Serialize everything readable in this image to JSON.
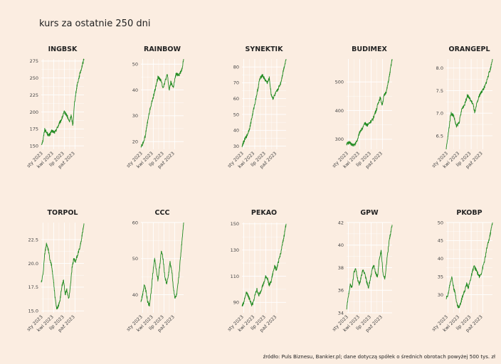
{
  "title": "kurs za ostatnie 250 dni",
  "source": "źródło: Puls Biznesu, Bankier.pl; dane dotyczą spółek o średnich obrotach powyżej 500 tys. zł",
  "colors": {
    "background": "#fbede1",
    "line": "#228b22",
    "grid": "#ffffff"
  },
  "chart_data": [
    {
      "type": "line",
      "title": "INGBSK",
      "x_ticks": [
        "sty 2023",
        "kwi 2023",
        "lip 2023",
        "paź 2023"
      ],
      "y_ticks": [
        150,
        175,
        200,
        225,
        250,
        275
      ],
      "y_tick_labels": [
        "150",
        "175",
        "200",
        "225",
        "250",
        "275"
      ],
      "ylim": [
        145,
        278
      ],
      "anchors": [
        [
          0,
          152
        ],
        [
          4,
          158
        ],
        [
          8,
          175
        ],
        [
          12,
          170
        ],
        [
          18,
          165
        ],
        [
          25,
          172
        ],
        [
          32,
          170
        ],
        [
          40,
          180
        ],
        [
          48,
          190
        ],
        [
          54,
          200
        ],
        [
          60,
          195
        ],
        [
          66,
          185
        ],
        [
          70,
          195
        ],
        [
          74,
          180
        ],
        [
          78,
          215
        ],
        [
          84,
          240
        ],
        [
          90,
          255
        ],
        [
          100,
          278
        ]
      ]
    },
    {
      "type": "line",
      "title": "RAINBOW",
      "x_ticks": [
        "sty 2023",
        "kwi 2023",
        "lip 2023",
        "paź 2023"
      ],
      "y_ticks": [
        20,
        30,
        40,
        50
      ],
      "y_tick_labels": [
        "20",
        "30",
        "40",
        "50"
      ],
      "ylim": [
        17,
        52
      ],
      "anchors": [
        [
          0,
          18
        ],
        [
          4,
          19
        ],
        [
          10,
          22
        ],
        [
          16,
          28
        ],
        [
          22,
          33
        ],
        [
          30,
          38
        ],
        [
          36,
          42
        ],
        [
          40,
          45
        ],
        [
          46,
          44
        ],
        [
          52,
          41
        ],
        [
          58,
          44
        ],
        [
          62,
          46
        ],
        [
          66,
          40
        ],
        [
          70,
          43
        ],
        [
          76,
          41
        ],
        [
          82,
          46
        ],
        [
          90,
          46
        ],
        [
          96,
          48
        ],
        [
          100,
          52
        ]
      ]
    },
    {
      "type": "line",
      "title": "SYNEKTIK",
      "x_ticks": [
        "sty 2023",
        "kwi 2023",
        "lip 2023",
        "paź 2023"
      ],
      "y_ticks": [
        30,
        40,
        50,
        60,
        70,
        80
      ],
      "y_tick_labels": [
        "30",
        "40",
        "50",
        "60",
        "70",
        "80"
      ],
      "ylim": [
        28,
        85
      ],
      "anchors": [
        [
          0,
          30
        ],
        [
          6,
          34
        ],
        [
          12,
          37
        ],
        [
          18,
          42
        ],
        [
          24,
          50
        ],
        [
          30,
          58
        ],
        [
          36,
          66
        ],
        [
          40,
          72
        ],
        [
          46,
          75
        ],
        [
          52,
          72
        ],
        [
          58,
          70
        ],
        [
          62,
          73
        ],
        [
          66,
          63
        ],
        [
          70,
          60
        ],
        [
          74,
          62
        ],
        [
          80,
          65
        ],
        [
          88,
          70
        ],
        [
          94,
          78
        ],
        [
          100,
          85
        ]
      ]
    },
    {
      "type": "line",
      "title": "BUDIMEX",
      "x_ticks": [
        "sty 2023",
        "kwi 2023",
        "lip 2023",
        "paź 2023"
      ],
      "y_ticks": [
        300,
        400,
        500
      ],
      "y_tick_labels": [
        "300",
        "400",
        "500"
      ],
      "ylim": [
        265,
        580
      ],
      "anchors": [
        [
          0,
          285
        ],
        [
          6,
          288
        ],
        [
          12,
          282
        ],
        [
          18,
          280
        ],
        [
          24,
          300
        ],
        [
          30,
          330
        ],
        [
          36,
          340
        ],
        [
          40,
          355
        ],
        [
          46,
          350
        ],
        [
          52,
          360
        ],
        [
          58,
          370
        ],
        [
          62,
          390
        ],
        [
          66,
          405
        ],
        [
          70,
          430
        ],
        [
          74,
          445
        ],
        [
          78,
          420
        ],
        [
          82,
          450
        ],
        [
          88,
          470
        ],
        [
          94,
          520
        ],
        [
          100,
          580
        ]
      ]
    },
    {
      "type": "line",
      "title": "ORANGEPL",
      "x_ticks": [
        "sty 2023",
        "kwi 2023",
        "lip 2023",
        "paź 2023"
      ],
      "y_ticks": [
        6.5,
        7.0,
        7.5,
        8.0
      ],
      "y_tick_labels": [
        "6.5",
        "7.0",
        "7.5",
        "8.0"
      ],
      "ylim": [
        6.2,
        8.2
      ],
      "anchors": [
        [
          0,
          6.2
        ],
        [
          4,
          6.5
        ],
        [
          10,
          7.0
        ],
        [
          16,
          6.95
        ],
        [
          22,
          6.7
        ],
        [
          28,
          6.8
        ],
        [
          34,
          7.1
        ],
        [
          40,
          7.2
        ],
        [
          46,
          7.4
        ],
        [
          52,
          7.3
        ],
        [
          58,
          7.2
        ],
        [
          62,
          7.0
        ],
        [
          66,
          7.2
        ],
        [
          72,
          7.4
        ],
        [
          78,
          7.5
        ],
        [
          84,
          7.6
        ],
        [
          90,
          7.8
        ],
        [
          96,
          8.0
        ],
        [
          100,
          8.2
        ]
      ]
    },
    {
      "type": "line",
      "title": "TORPOL",
      "x_ticks": [
        "sty 2023",
        "kwi 2023",
        "lip 2023",
        "paź 2023"
      ],
      "y_ticks": [
        15.0,
        17.5,
        20.0,
        22.5
      ],
      "y_tick_labels": [
        "15.0",
        "17.5",
        "20.0",
        "22.5"
      ],
      "ylim": [
        14.8,
        24.3
      ],
      "anchors": [
        [
          0,
          18
        ],
        [
          4,
          18.8
        ],
        [
          8,
          21
        ],
        [
          12,
          22
        ],
        [
          16,
          21.5
        ],
        [
          20,
          20.5
        ],
        [
          24,
          19.8
        ],
        [
          28,
          18.5
        ],
        [
          32,
          16.5
        ],
        [
          36,
          15.2
        ],
        [
          40,
          15.5
        ],
        [
          44,
          16.2
        ],
        [
          48,
          17.5
        ],
        [
          52,
          18.2
        ],
        [
          56,
          16.8
        ],
        [
          60,
          17.2
        ],
        [
          64,
          16.2
        ],
        [
          68,
          17.5
        ],
        [
          72,
          19.5
        ],
        [
          76,
          20.5
        ],
        [
          80,
          20.2
        ],
        [
          86,
          21
        ],
        [
          92,
          22
        ],
        [
          100,
          24.2
        ]
      ]
    },
    {
      "type": "line",
      "title": "CCC",
      "x_ticks": [
        "sty 2023",
        "kwi 2023",
        "lip 2023",
        "paź 2023"
      ],
      "y_ticks": [
        40,
        50,
        60
      ],
      "y_tick_labels": [
        "40",
        "50",
        "60"
      ],
      "ylim": [
        35,
        60
      ],
      "anchors": [
        [
          0,
          38
        ],
        [
          4,
          40
        ],
        [
          8,
          43
        ],
        [
          12,
          41
        ],
        [
          16,
          38
        ],
        [
          20,
          37
        ],
        [
          24,
          41
        ],
        [
          28,
          46
        ],
        [
          32,
          50
        ],
        [
          36,
          47
        ],
        [
          40,
          44
        ],
        [
          44,
          48
        ],
        [
          48,
          52
        ],
        [
          52,
          50
        ],
        [
          56,
          45
        ],
        [
          60,
          43
        ],
        [
          64,
          45
        ],
        [
          68,
          49
        ],
        [
          72,
          47
        ],
        [
          76,
          42
        ],
        [
          80,
          39
        ],
        [
          84,
          40
        ],
        [
          88,
          44
        ],
        [
          94,
          52
        ],
        [
          100,
          60
        ]
      ]
    },
    {
      "type": "line",
      "title": "PEKAO",
      "x_ticks": [
        "sty 2023",
        "kwi 2023",
        "lip 2023",
        "paź 2023"
      ],
      "y_ticks": [
        90,
        110,
        130,
        150
      ],
      "y_tick_labels": [
        "90",
        "110",
        "130",
        "150"
      ],
      "ylim": [
        82,
        151
      ],
      "anchors": [
        [
          0,
          87
        ],
        [
          4,
          90
        ],
        [
          10,
          98
        ],
        [
          14,
          95
        ],
        [
          18,
          92
        ],
        [
          22,
          88
        ],
        [
          26,
          90
        ],
        [
          30,
          96
        ],
        [
          34,
          100
        ],
        [
          38,
          95
        ],
        [
          42,
          98
        ],
        [
          46,
          102
        ],
        [
          50,
          105
        ],
        [
          54,
          110
        ],
        [
          58,
          108
        ],
        [
          62,
          103
        ],
        [
          66,
          106
        ],
        [
          70,
          112
        ],
        [
          74,
          118
        ],
        [
          78,
          115
        ],
        [
          82,
          120
        ],
        [
          88,
          128
        ],
        [
          94,
          138
        ],
        [
          100,
          150
        ]
      ]
    },
    {
      "type": "line",
      "title": "GPW",
      "x_ticks": [
        "sty 2023",
        "kwi 2023",
        "lip 2023",
        "paź 2023"
      ],
      "y_ticks": [
        34,
        36,
        38,
        40,
        42
      ],
      "y_tick_labels": [
        "34",
        "36",
        "38",
        "40",
        "42"
      ],
      "ylim": [
        34,
        42
      ],
      "anchors": [
        [
          0,
          34.3
        ],
        [
          4,
          35.5
        ],
        [
          8,
          36.5
        ],
        [
          12,
          36.2
        ],
        [
          16,
          37.5
        ],
        [
          20,
          38
        ],
        [
          24,
          37
        ],
        [
          28,
          36.5
        ],
        [
          32,
          37.2
        ],
        [
          36,
          37.8
        ],
        [
          40,
          37.5
        ],
        [
          44,
          36.8
        ],
        [
          48,
          36.2
        ],
        [
          52,
          37
        ],
        [
          56,
          37.8
        ],
        [
          60,
          38.2
        ],
        [
          64,
          37.5
        ],
        [
          68,
          37.2
        ],
        [
          72,
          38.8
        ],
        [
          76,
          39.5
        ],
        [
          80,
          37.5
        ],
        [
          84,
          37
        ],
        [
          88,
          38.5
        ],
        [
          94,
          40.5
        ],
        [
          100,
          41.8
        ]
      ]
    },
    {
      "type": "line",
      "title": "PKOBP",
      "x_ticks": [
        "sty 2023",
        "kwi 2023",
        "lip 2023",
        "paź 2023"
      ],
      "y_ticks": [
        30,
        35,
        40,
        45,
        50
      ],
      "y_tick_labels": [
        "30",
        "35",
        "40",
        "45",
        "50"
      ],
      "ylim": [
        25,
        50
      ],
      "anchors": [
        [
          0,
          29
        ],
        [
          4,
          30
        ],
        [
          8,
          33
        ],
        [
          12,
          35
        ],
        [
          16,
          32
        ],
        [
          20,
          30
        ],
        [
          24,
          27
        ],
        [
          28,
          26.5
        ],
        [
          32,
          28
        ],
        [
          36,
          30
        ],
        [
          40,
          31
        ],
        [
          44,
          33
        ],
        [
          48,
          32
        ],
        [
          52,
          34
        ],
        [
          56,
          36
        ],
        [
          60,
          38
        ],
        [
          64,
          37
        ],
        [
          68,
          36
        ],
        [
          72,
          35
        ],
        [
          76,
          36
        ],
        [
          80,
          38
        ],
        [
          84,
          40
        ],
        [
          88,
          43
        ],
        [
          94,
          46
        ],
        [
          100,
          50
        ]
      ]
    }
  ]
}
